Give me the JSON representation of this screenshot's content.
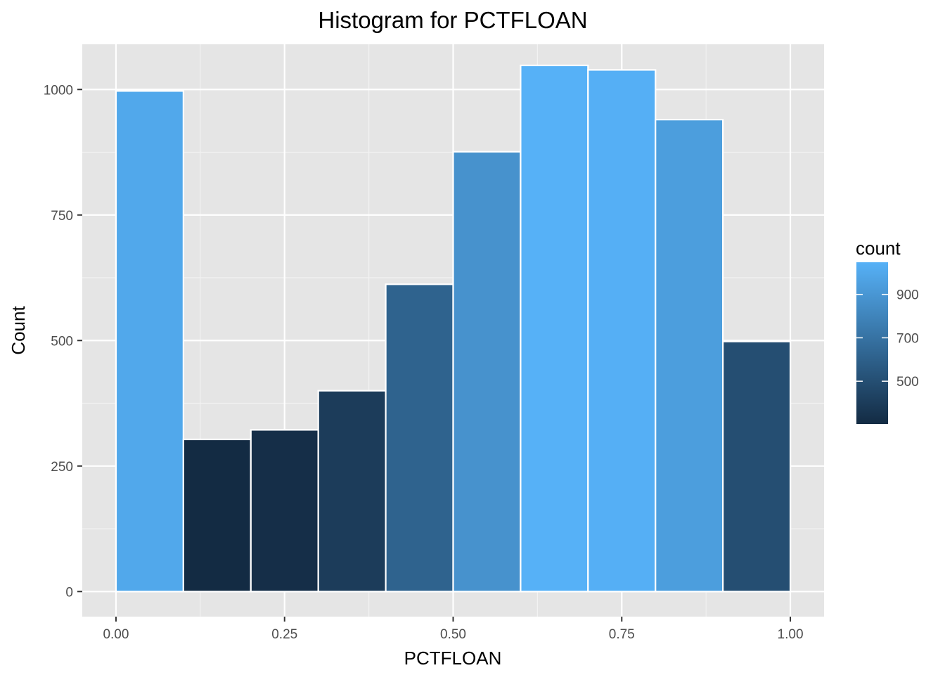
{
  "chart_data": {
    "type": "bar",
    "title": "Histogram for PCTFLOAN",
    "xlabel": "PCTFLOAN",
    "ylabel": "Count",
    "xlim": [
      -0.05,
      1.05
    ],
    "ylim": [
      -50,
      1090
    ],
    "x_ticks": [
      0.0,
      0.25,
      0.5,
      0.75,
      1.0
    ],
    "x_tick_labels": [
      "0.00",
      "0.25",
      "0.50",
      "0.75",
      "1.00"
    ],
    "y_ticks": [
      0,
      250,
      500,
      750,
      1000
    ],
    "y_tick_labels": [
      "0",
      "250",
      "500",
      "750",
      "1000"
    ],
    "bins": [
      {
        "x0": 0.0,
        "x1": 0.1,
        "count": 997
      },
      {
        "x0": 0.1,
        "x1": 0.2,
        "count": 303
      },
      {
        "x0": 0.2,
        "x1": 0.3,
        "count": 322
      },
      {
        "x0": 0.3,
        "x1": 0.4,
        "count": 400
      },
      {
        "x0": 0.4,
        "x1": 0.5,
        "count": 612
      },
      {
        "x0": 0.5,
        "x1": 0.6,
        "count": 876
      },
      {
        "x0": 0.6,
        "x1": 0.7,
        "count": 1048
      },
      {
        "x0": 0.7,
        "x1": 0.8,
        "count": 1039
      },
      {
        "x0": 0.8,
        "x1": 0.9,
        "count": 940
      },
      {
        "x0": 0.9,
        "x1": 1.0,
        "count": 498
      }
    ],
    "fill_scale": {
      "low_color": "#132B43",
      "high_color": "#56B1F7",
      "domain": [
        303,
        1048
      ]
    },
    "grid": true,
    "panel_background": "#e5e5e5",
    "bar_outline": "#ffffff",
    "legend": {
      "title": "count",
      "placement": "right",
      "breaks": [
        500,
        700,
        900
      ],
      "break_labels": [
        "500",
        "700",
        "900"
      ]
    }
  }
}
